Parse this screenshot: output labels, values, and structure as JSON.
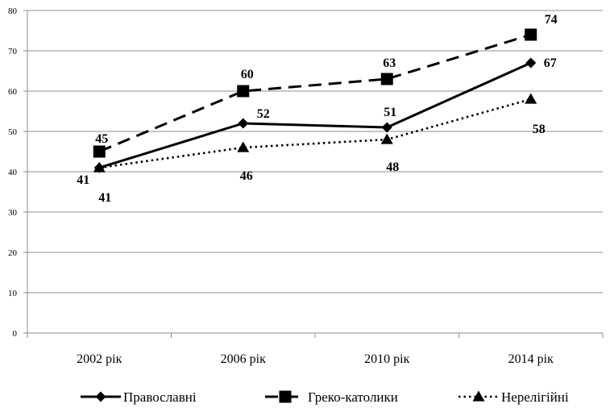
{
  "chart_data": {
    "type": "line",
    "categories": [
      "2002 рік",
      "2006 рік",
      "2010 рік",
      "2014 рік"
    ],
    "ylim": [
      0,
      80
    ],
    "yticks": [
      0,
      10,
      20,
      30,
      40,
      50,
      60,
      70,
      80
    ],
    "grid": true,
    "legend_position": "bottom",
    "series": [
      {
        "name": "Православні",
        "values": [
          41,
          52,
          51,
          67
        ],
        "marker": "diamond",
        "dash": "solid",
        "color": "#000000"
      },
      {
        "name": "Греко-католики",
        "values": [
          45,
          60,
          63,
          74
        ],
        "marker": "square",
        "dash": "dashed",
        "color": "#000000"
      },
      {
        "name": "Нерелігійні",
        "values": [
          41,
          46,
          48,
          58
        ],
        "marker": "triangle",
        "dash": "dotted",
        "color": "#000000"
      }
    ]
  }
}
